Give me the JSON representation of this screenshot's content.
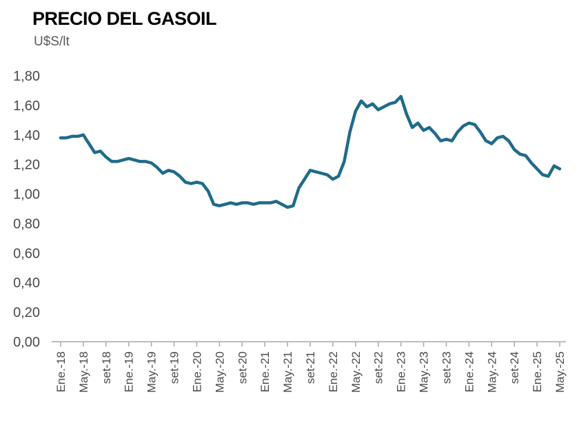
{
  "chart_data": {
    "type": "line",
    "title": "PRECIO DEL GASOIL",
    "unit": "U$S/lt",
    "ylabel": "U$S/lt",
    "ylim": [
      0,
      1.8
    ],
    "ytick_labels": [
      "0,00",
      "0,20",
      "0,40",
      "0,60",
      "0,80",
      "1,00",
      "1,20",
      "1,40",
      "1,60",
      "1,80"
    ],
    "x_tick_labels": [
      "Ene.-18",
      "May.-18",
      "set-18",
      "Ene.-19",
      "May.-19",
      "set-19",
      "Ene.-20",
      "May.-20",
      "set-20",
      "Ene.-21",
      "May.-21",
      "set-21",
      "Ene.-22",
      "May.-22",
      "set-22",
      "Ene.-23",
      "May.-23",
      "set-23",
      "Ene.-24",
      "May.-24",
      "set-24",
      "Ene.-25",
      "May.-25"
    ],
    "x_tick_every": 4,
    "x_frequency": "monthly",
    "grid": "off",
    "legend": "none",
    "series": [
      {
        "name": "Precio del gasoil (U$S/lt)",
        "values": [
          1.38,
          1.38,
          1.39,
          1.39,
          1.4,
          1.34,
          1.28,
          1.29,
          1.25,
          1.22,
          1.22,
          1.23,
          1.24,
          1.23,
          1.22,
          1.22,
          1.21,
          1.18,
          1.14,
          1.16,
          1.15,
          1.12,
          1.08,
          1.07,
          1.08,
          1.07,
          1.02,
          0.93,
          0.92,
          0.93,
          0.94,
          0.93,
          0.94,
          0.94,
          0.93,
          0.94,
          0.94,
          0.94,
          0.95,
          0.93,
          0.91,
          0.92,
          1.04,
          1.1,
          1.16,
          1.15,
          1.14,
          1.13,
          1.1,
          1.12,
          1.22,
          1.42,
          1.56,
          1.63,
          1.59,
          1.61,
          1.57,
          1.59,
          1.61,
          1.62,
          1.66,
          1.54,
          1.45,
          1.48,
          1.43,
          1.45,
          1.41,
          1.36,
          1.37,
          1.36,
          1.42,
          1.46,
          1.48,
          1.47,
          1.42,
          1.36,
          1.34,
          1.38,
          1.39,
          1.36,
          1.3,
          1.27,
          1.26,
          1.21,
          1.17,
          1.13,
          1.12,
          1.19,
          1.17
        ]
      }
    ],
    "colors": {
      "line": "#1f6b8a",
      "axis": "#a6a6a6",
      "tick_label": "#4a4a4a",
      "title": "#000000"
    }
  }
}
